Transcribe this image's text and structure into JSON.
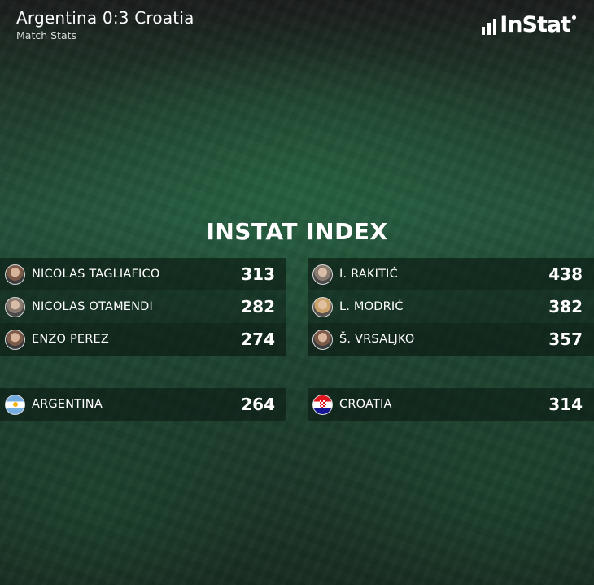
{
  "header": {
    "title": "Argentina 0:3 Croatia",
    "subtitle": "Match Stats",
    "logo_text": "InStat"
  },
  "section_title": "INSTAT INDEX",
  "argentina": {
    "players": [
      {
        "name": "NICOLAS TAGLIAFICO",
        "value": "313"
      },
      {
        "name": "NICOLAS OTAMENDI",
        "value": "282"
      },
      {
        "name": "ENZO PEREZ",
        "value": "274"
      }
    ],
    "team": {
      "name": "ARGENTINA",
      "value": "264",
      "flag": "argentina-flag-icon"
    }
  },
  "croatia": {
    "players": [
      {
        "name": "I. RAKITIĆ",
        "value": "438"
      },
      {
        "name": "L. MODRIĆ",
        "value": "382"
      },
      {
        "name": "Š. VRSALJKO",
        "value": "357"
      }
    ],
    "team": {
      "name": "CROATIA",
      "value": "314",
      "flag": "croatia-flag-icon"
    }
  },
  "colors": {
    "background_green": "#24513a",
    "row_dark": "#0a1610",
    "text": "#ffffff"
  }
}
